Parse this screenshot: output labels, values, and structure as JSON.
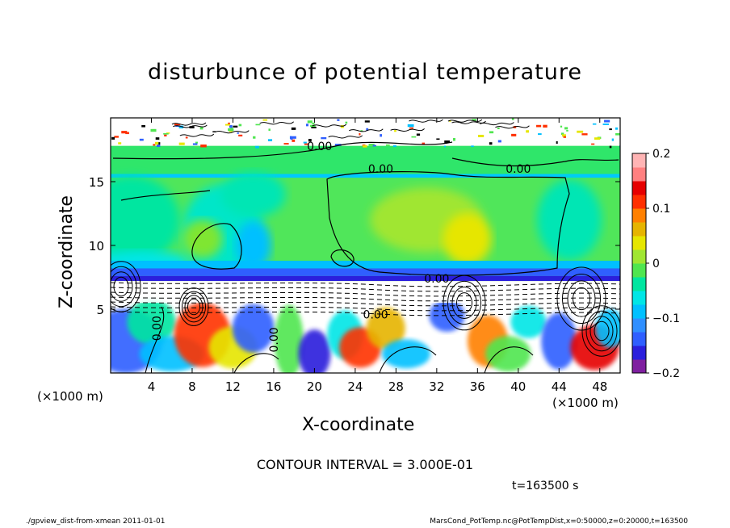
{
  "title": "disturbunce of potential temperature",
  "x_unit_left": "(×1000 m)",
  "x_unit_right": "(×1000 m)",
  "contour_text": "CONTOUR INTERVAL = 3.000E-01",
  "time_text": "t=163500 s",
  "footer_left": "./gpview_dist-from-xmean   2011-01-01",
  "footer_right": "MarsCond_PotTemp.nc@PotTempDist,x=0:50000,z=0:20000,t=163500",
  "colors": {
    "colorbar": [
      "#7f1fa0",
      "#2b1fdc",
      "#2f5fff",
      "#2f8fff",
      "#00c0ff",
      "#00e6e6",
      "#00e6a0",
      "#50e650",
      "#a0e632",
      "#e6e600",
      "#e6b400",
      "#ff8000",
      "#ff3000",
      "#e60000",
      "#ff8080",
      "#ffb4b4"
    ]
  },
  "chart_data": {
    "type": "heatmap",
    "title": "disturbunce of potential temperature",
    "xlabel": "X-coordinate",
    "ylabel": "Z-coordinate",
    "xlim": [
      0,
      50
    ],
    "ylim": [
      0,
      20
    ],
    "x_ticks": [
      4,
      8,
      12,
      16,
      20,
      24,
      28,
      32,
      36,
      40,
      44,
      48
    ],
    "y_ticks": [
      5,
      10,
      15
    ],
    "colorbar": {
      "min": -0.2,
      "max": 0.2,
      "ticks": [
        0.2,
        0.1,
        0,
        -0.1,
        -0.2
      ],
      "tick_labels": [
        "0.2",
        "0.1",
        "0",
        "−0.1",
        "−0.2"
      ]
    },
    "contour_labels": [
      {
        "text": "0.00",
        "x": 20.5,
        "z": 17.8
      },
      {
        "text": "0.00",
        "x": 26.5,
        "z": 16.0
      },
      {
        "text": "0.00",
        "x": 40.0,
        "z": 16.0
      },
      {
        "text": "0.00",
        "x": 32.0,
        "z": 7.4
      },
      {
        "text": "0.00",
        "x": 26.0,
        "z": 4.6
      },
      {
        "text": "0.00",
        "x": 4.5,
        "z": 3.5
      },
      {
        "text": "0.00",
        "x": 16.0,
        "z": 2.6
      }
    ]
  }
}
